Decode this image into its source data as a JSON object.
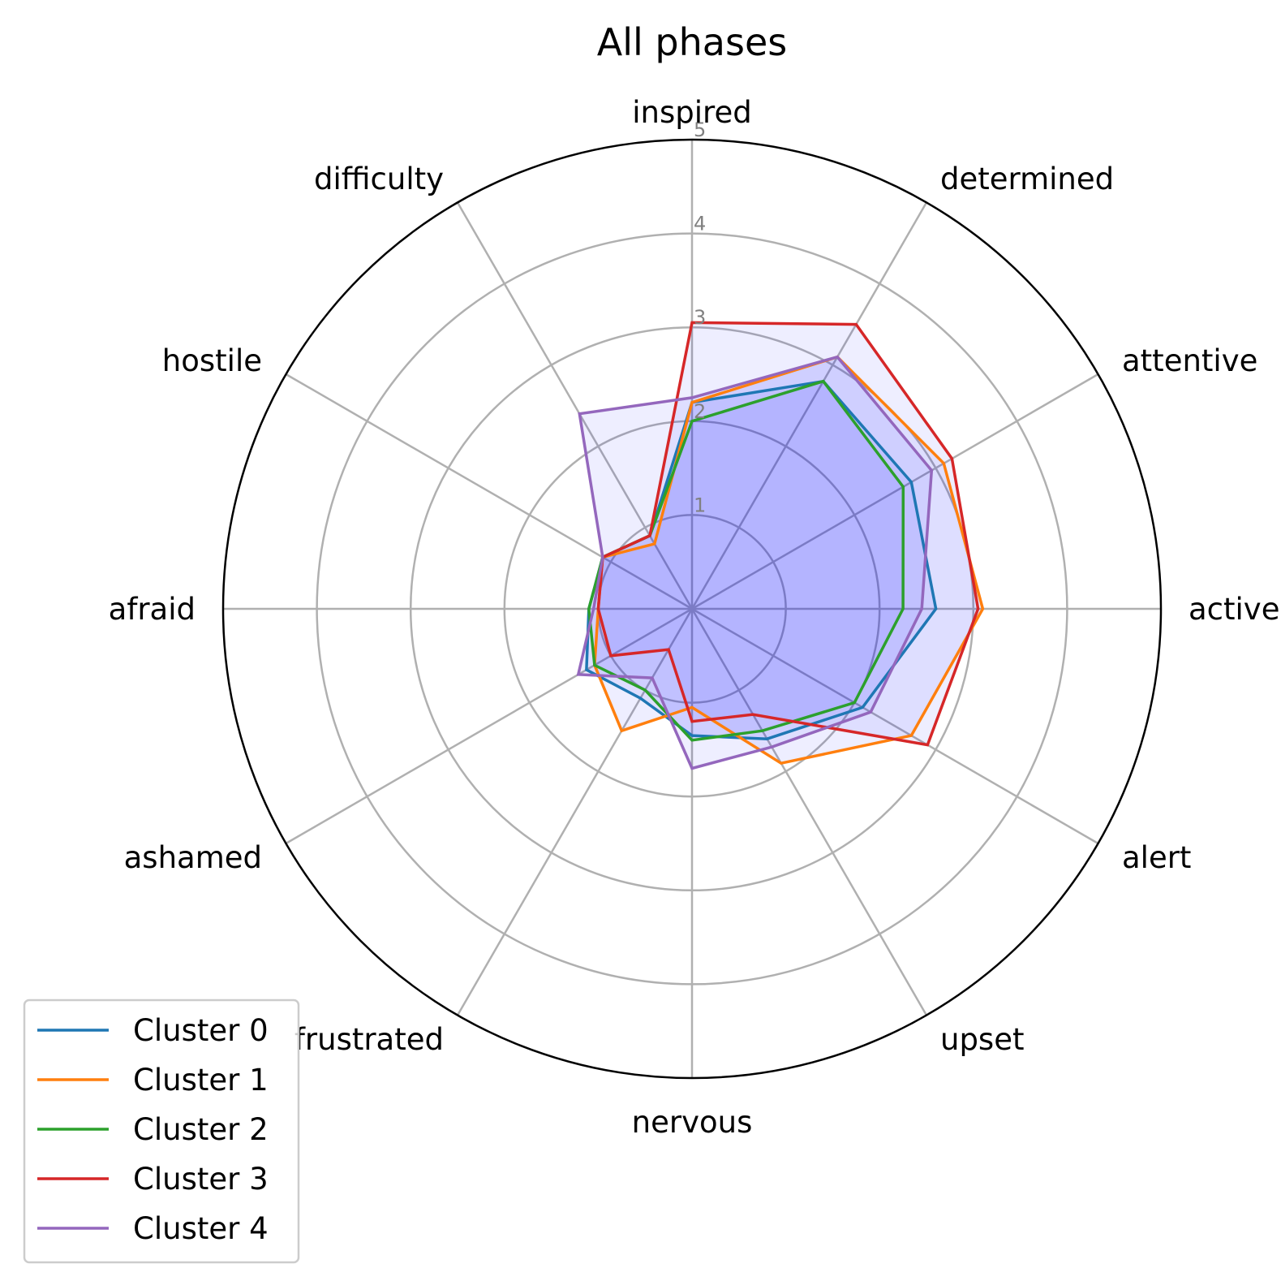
{
  "chart_data": {
    "type": "radar",
    "title": "All phases",
    "axes": [
      "inspired",
      "determined",
      "attentive",
      "active",
      "alert",
      "upset",
      "nervous",
      "frustrated",
      "ashamed",
      "afraid",
      "hostile",
      "difficulty"
    ],
    "rlim": [
      0,
      5
    ],
    "rticks": [
      1,
      2,
      3,
      4,
      5
    ],
    "rtick_labels": [
      "1",
      "2",
      "3",
      "4",
      "5"
    ],
    "grid": true,
    "legend_position": "lower-left",
    "series": [
      {
        "name": "Cluster 0",
        "color": "#1f77b4",
        "values": [
          2.2,
          2.8,
          2.7,
          2.6,
          2.1,
          1.6,
          1.35,
          1.1,
          1.3,
          1.1,
          1.1,
          0.9
        ]
      },
      {
        "name": "Cluster 1",
        "color": "#ff7f0e",
        "values": [
          2.2,
          3.1,
          3.1,
          3.1,
          2.7,
          1.9,
          1.05,
          1.5,
          1.2,
          1.0,
          1.1,
          0.8
        ]
      },
      {
        "name": "Cluster 2",
        "color": "#2ca02c",
        "values": [
          2.0,
          2.8,
          2.6,
          2.25,
          2.0,
          1.5,
          1.4,
          1.0,
          1.2,
          1.1,
          1.1,
          0.9
        ]
      },
      {
        "name": "Cluster 3",
        "color": "#d62728",
        "values": [
          3.05,
          3.5,
          3.2,
          3.05,
          2.9,
          1.3,
          1.2,
          0.5,
          1.0,
          1.0,
          1.1,
          0.9
        ]
      },
      {
        "name": "Cluster 4",
        "color": "#9467bd",
        "values": [
          2.25,
          3.1,
          2.95,
          2.45,
          2.2,
          1.7,
          1.7,
          0.85,
          1.4,
          1.05,
          1.1,
          2.4
        ]
      }
    ],
    "fill_color": "#0000ff",
    "fill_opacity": 0.065
  }
}
